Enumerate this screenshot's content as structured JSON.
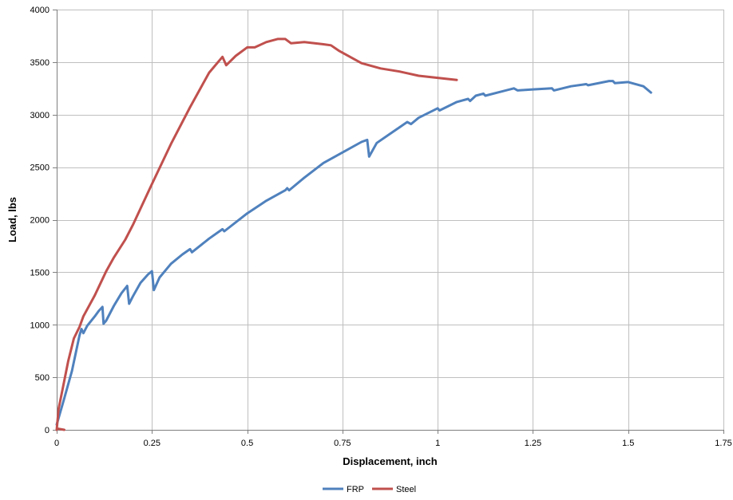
{
  "chart_data": {
    "type": "line",
    "xlabel": "Displacement, inch",
    "ylabel": "Load, lbs",
    "xlim": [
      0,
      1.75
    ],
    "ylim": [
      0,
      4000
    ],
    "xticks": [
      0,
      0.25,
      0.5,
      0.75,
      1,
      1.25,
      1.5,
      1.75
    ],
    "xtick_labels": [
      "0",
      "0.25",
      "0.5",
      "0.75",
      "1",
      "1.25",
      "1.5",
      "1.75"
    ],
    "yticks": [
      0,
      500,
      1000,
      1500,
      2000,
      2500,
      3000,
      3500,
      4000
    ],
    "ytick_labels": [
      "0",
      "500",
      "1000",
      "1500",
      "2000",
      "2500",
      "3000",
      "3500",
      "4000"
    ],
    "grid": true,
    "legend_position": "bottom",
    "series": [
      {
        "name": "FRP",
        "color": "#4f81bd",
        "points": [
          [
            0,
            50
          ],
          [
            0.02,
            300
          ],
          [
            0.04,
            560
          ],
          [
            0.06,
            900
          ],
          [
            0.065,
            960
          ],
          [
            0.07,
            920
          ],
          [
            0.08,
            990
          ],
          [
            0.1,
            1080
          ],
          [
            0.11,
            1130
          ],
          [
            0.12,
            1170
          ],
          [
            0.123,
            1010
          ],
          [
            0.13,
            1040
          ],
          [
            0.15,
            1180
          ],
          [
            0.17,
            1300
          ],
          [
            0.185,
            1370
          ],
          [
            0.19,
            1200
          ],
          [
            0.2,
            1270
          ],
          [
            0.22,
            1400
          ],
          [
            0.24,
            1480
          ],
          [
            0.25,
            1510
          ],
          [
            0.255,
            1330
          ],
          [
            0.27,
            1450
          ],
          [
            0.3,
            1580
          ],
          [
            0.33,
            1670
          ],
          [
            0.35,
            1720
          ],
          [
            0.355,
            1690
          ],
          [
            0.4,
            1820
          ],
          [
            0.435,
            1910
          ],
          [
            0.44,
            1890
          ],
          [
            0.5,
            2060
          ],
          [
            0.55,
            2180
          ],
          [
            0.6,
            2280
          ],
          [
            0.605,
            2300
          ],
          [
            0.61,
            2280
          ],
          [
            0.65,
            2400
          ],
          [
            0.7,
            2540
          ],
          [
            0.75,
            2640
          ],
          [
            0.8,
            2740
          ],
          [
            0.815,
            2760
          ],
          [
            0.82,
            2600
          ],
          [
            0.84,
            2730
          ],
          [
            0.88,
            2830
          ],
          [
            0.9,
            2880
          ],
          [
            0.92,
            2930
          ],
          [
            0.93,
            2910
          ],
          [
            0.95,
            2970
          ],
          [
            1.0,
            3060
          ],
          [
            1.005,
            3040
          ],
          [
            1.05,
            3120
          ],
          [
            1.08,
            3150
          ],
          [
            1.085,
            3130
          ],
          [
            1.1,
            3180
          ],
          [
            1.12,
            3200
          ],
          [
            1.125,
            3180
          ],
          [
            1.2,
            3250
          ],
          [
            1.21,
            3230
          ],
          [
            1.25,
            3240
          ],
          [
            1.3,
            3250
          ],
          [
            1.305,
            3230
          ],
          [
            1.35,
            3270
          ],
          [
            1.39,
            3290
          ],
          [
            1.395,
            3280
          ],
          [
            1.45,
            3320
          ],
          [
            1.46,
            3320
          ],
          [
            1.465,
            3300
          ],
          [
            1.5,
            3310
          ],
          [
            1.54,
            3270
          ],
          [
            1.56,
            3210
          ]
        ]
      },
      {
        "name": "Steel",
        "color": "#c0504d",
        "points": [
          [
            0,
            0
          ],
          [
            0.005,
            200
          ],
          [
            0.015,
            380
          ],
          [
            0.03,
            650
          ],
          [
            0.045,
            870
          ],
          [
            0.06,
            980
          ],
          [
            0.07,
            1080
          ],
          [
            0.1,
            1280
          ],
          [
            0.13,
            1510
          ],
          [
            0.15,
            1640
          ],
          [
            0.18,
            1810
          ],
          [
            0.2,
            1950
          ],
          [
            0.25,
            2340
          ],
          [
            0.3,
            2720
          ],
          [
            0.35,
            3070
          ],
          [
            0.4,
            3400
          ],
          [
            0.435,
            3550
          ],
          [
            0.445,
            3470
          ],
          [
            0.47,
            3560
          ],
          [
            0.5,
            3640
          ],
          [
            0.52,
            3640
          ],
          [
            0.55,
            3690
          ],
          [
            0.58,
            3720
          ],
          [
            0.6,
            3720
          ],
          [
            0.615,
            3680
          ],
          [
            0.65,
            3690
          ],
          [
            0.7,
            3670
          ],
          [
            0.72,
            3660
          ],
          [
            0.74,
            3610
          ],
          [
            0.8,
            3490
          ],
          [
            0.85,
            3440
          ],
          [
            0.9,
            3410
          ],
          [
            0.95,
            3370
          ],
          [
            1.0,
            3350
          ],
          [
            1.05,
            3330
          ]
        ]
      },
      {
        "name": "",
        "color": "#c0504d",
        "points": [
          [
            0.005,
            10
          ],
          [
            0.02,
            0
          ]
        ]
      }
    ]
  }
}
